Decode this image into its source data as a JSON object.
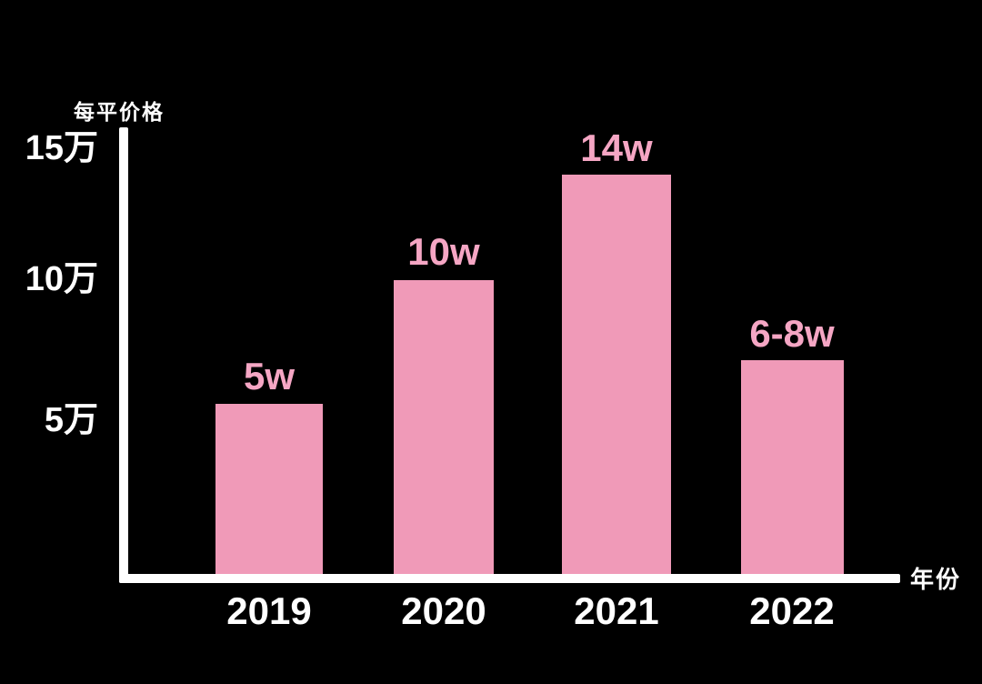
{
  "chart_data": {
    "type": "bar",
    "title": "",
    "ylabel": "每平价格",
    "xlabel": "年份",
    "categories": [
      "2019",
      "2020",
      "2021",
      "2022"
    ],
    "values": [
      5,
      10,
      14,
      7
    ],
    "values_display": [
      "5w",
      "10w",
      "14w",
      "6-8w"
    ],
    "y_ticks": [
      "15万",
      "10万",
      "5万"
    ],
    "ylim": [
      0,
      16.5
    ],
    "grid": false,
    "legend": "none",
    "colors": {
      "background": "#000000",
      "bar": "#f09ab8",
      "value_label": "#f5a6c4",
      "axis_and_text": "#ffffff"
    }
  }
}
